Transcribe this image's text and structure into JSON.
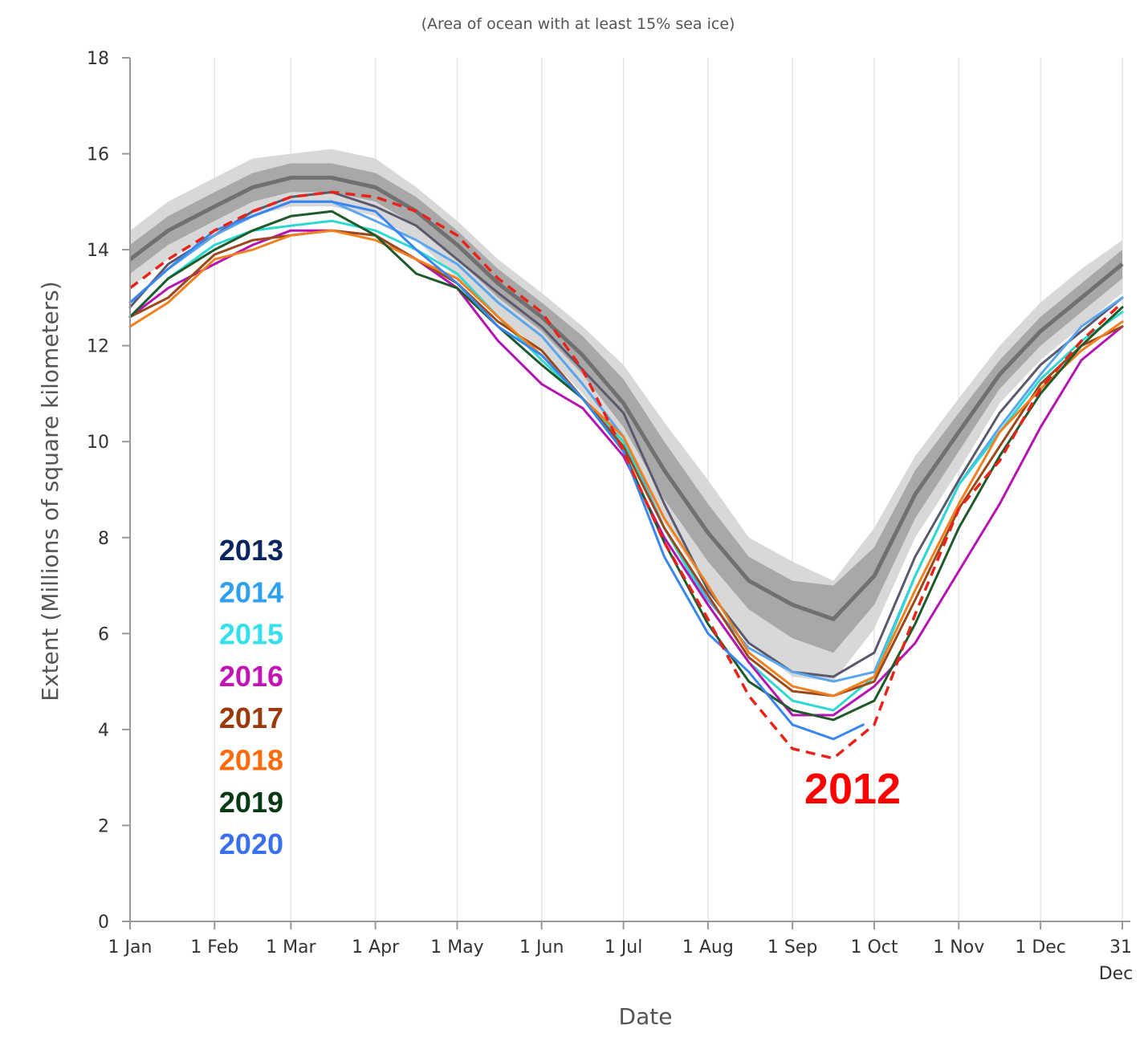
{
  "chart_data": {
    "type": "line",
    "subtitle": "(Area of ocean with at least 15% sea ice)",
    "xlabel": "Date",
    "ylabel": "Extent (Millions of square kilometers)",
    "ylim": [
      0,
      18
    ],
    "xlim": [
      1,
      365
    ],
    "y_ticks": [
      "0",
      "2",
      "4",
      "6",
      "8",
      "10",
      "12",
      "14",
      "16",
      "18"
    ],
    "y_tick_values": [
      0,
      2,
      4,
      6,
      8,
      10,
      12,
      14,
      16,
      18
    ],
    "x_ticks": [
      {
        "label": "1 Jan",
        "day": 1
      },
      {
        "label": "1 Feb",
        "day": 32
      },
      {
        "label": "1 Mar",
        "day": 60
      },
      {
        "label": "1 Apr",
        "day": 91
      },
      {
        "label": "1 May",
        "day": 121
      },
      {
        "label": "1 Jun",
        "day": 152
      },
      {
        "label": "1 Jul",
        "day": 182
      },
      {
        "label": "1 Aug",
        "day": 213
      },
      {
        "label": "1 Sep",
        "day": 244
      },
      {
        "label": "1 Oct",
        "day": 274
      },
      {
        "label": "1 Nov",
        "day": 305
      },
      {
        "label": "1 Dec",
        "day": 335
      },
      {
        "label": "31",
        "day": 365
      }
    ],
    "x_end_sublabel": "Dec",
    "bands": {
      "days": [
        1,
        15,
        32,
        46,
        60,
        75,
        91,
        106,
        121,
        136,
        152,
        167,
        182,
        197,
        213,
        228,
        244,
        259,
        274,
        289,
        305,
        320,
        335,
        350,
        365
      ],
      "median": [
        13.8,
        14.4,
        14.9,
        15.3,
        15.5,
        15.5,
        15.3,
        14.8,
        14.1,
        13.3,
        12.6,
        11.8,
        10.8,
        9.4,
        8.1,
        7.1,
        6.6,
        6.3,
        7.2,
        8.9,
        10.2,
        11.4,
        12.3,
        13.0,
        13.7
      ],
      "iqr_low": [
        13.5,
        14.1,
        14.6,
        15.0,
        15.2,
        15.2,
        15.0,
        14.5,
        13.8,
        13.0,
        12.3,
        11.4,
        10.3,
        8.8,
        7.5,
        6.5,
        5.9,
        5.6,
        6.6,
        8.4,
        9.8,
        11.1,
        12.0,
        12.7,
        13.4
      ],
      "iqr_high": [
        14.1,
        14.7,
        15.2,
        15.6,
        15.8,
        15.8,
        15.6,
        15.1,
        14.4,
        13.6,
        12.9,
        12.2,
        11.3,
        10.0,
        8.7,
        7.6,
        7.1,
        7.0,
        7.8,
        9.4,
        10.6,
        11.7,
        12.6,
        13.3,
        14.0
      ],
      "range_low": [
        13.2,
        13.8,
        14.3,
        14.7,
        14.9,
        14.9,
        14.7,
        14.2,
        13.4,
        12.6,
        11.9,
        11.0,
        9.9,
        8.3,
        6.9,
        5.8,
        5.1,
        5.0,
        6.1,
        8.0,
        9.4,
        10.8,
        11.7,
        12.4,
        13.1
      ],
      "range_high": [
        14.4,
        15.0,
        15.5,
        15.9,
        16.0,
        16.1,
        15.9,
        15.3,
        14.6,
        13.8,
        13.1,
        12.4,
        11.6,
        10.4,
        9.2,
        8.0,
        7.5,
        7.1,
        8.2,
        9.7,
        10.9,
        12.0,
        12.9,
        13.6,
        14.2
      ]
    },
    "series": [
      {
        "name": "2013",
        "color": "#5a5a6e",
        "days": [
          1,
          15,
          32,
          46,
          60,
          75,
          91,
          106,
          121,
          136,
          152,
          167,
          182,
          197,
          213,
          228,
          244,
          259,
          274,
          289,
          305,
          320,
          335,
          350,
          365
        ],
        "values": [
          12.8,
          13.7,
          14.3,
          14.8,
          15.1,
          15.2,
          14.9,
          14.5,
          13.8,
          13.1,
          12.4,
          11.5,
          10.6,
          8.7,
          6.9,
          5.8,
          5.2,
          5.1,
          5.6,
          7.6,
          9.2,
          10.6,
          11.6,
          12.3,
          13.0
        ]
      },
      {
        "name": "2014",
        "color": "#5aa6ee",
        "days": [
          1,
          15,
          32,
          46,
          60,
          75,
          91,
          106,
          121,
          136,
          152,
          167,
          182,
          197,
          213,
          228,
          244,
          259,
          274,
          289,
          305,
          320,
          335,
          350,
          365
        ],
        "values": [
          12.9,
          13.6,
          14.3,
          14.7,
          15.0,
          15.0,
          14.6,
          14.2,
          13.7,
          12.9,
          12.2,
          11.2,
          10.1,
          8.2,
          6.7,
          5.7,
          5.2,
          5.0,
          5.2,
          7.2,
          9.1,
          10.3,
          11.4,
          12.4,
          13.0
        ]
      },
      {
        "name": "2015",
        "color": "#2fd8d0",
        "days": [
          1,
          15,
          32,
          46,
          60,
          75,
          91,
          106,
          121,
          136,
          152,
          167,
          182,
          197,
          213,
          228,
          244,
          259,
          274,
          289,
          305,
          320,
          335,
          350,
          365
        ],
        "values": [
          12.6,
          13.4,
          14.1,
          14.4,
          14.5,
          14.6,
          14.4,
          14.0,
          13.5,
          12.6,
          11.7,
          10.9,
          10.0,
          8.2,
          6.6,
          5.4,
          4.6,
          4.4,
          5.1,
          7.2,
          9.1,
          10.2,
          11.3,
          12.1,
          12.7
        ]
      },
      {
        "name": "2016",
        "color": "#b514b0",
        "days": [
          1,
          15,
          32,
          46,
          60,
          75,
          91,
          106,
          121,
          136,
          152,
          167,
          182,
          197,
          213,
          228,
          244,
          259,
          274,
          289,
          305,
          320,
          335,
          350,
          365
        ],
        "values": [
          12.6,
          13.2,
          13.7,
          14.1,
          14.4,
          14.4,
          14.3,
          13.8,
          13.2,
          12.1,
          11.2,
          10.7,
          9.7,
          8.0,
          6.6,
          5.4,
          4.3,
          4.3,
          4.9,
          5.8,
          7.3,
          8.7,
          10.3,
          11.7,
          12.4
        ]
      },
      {
        "name": "2017",
        "color": "#9a4a1a",
        "days": [
          1,
          15,
          32,
          46,
          60,
          75,
          91,
          106,
          121,
          136,
          152,
          167,
          182,
          197,
          213,
          228,
          244,
          259,
          274,
          289,
          305,
          320,
          335,
          350,
          365
        ],
        "values": [
          12.6,
          13.0,
          13.9,
          14.2,
          14.3,
          14.4,
          14.3,
          13.8,
          13.3,
          12.5,
          11.9,
          10.9,
          9.9,
          8.2,
          6.8,
          5.5,
          4.8,
          4.7,
          5.0,
          6.7,
          8.6,
          9.9,
          11.2,
          12.0,
          12.4
        ]
      },
      {
        "name": "2018",
        "color": "#f08020",
        "days": [
          1,
          15,
          32,
          46,
          60,
          75,
          91,
          106,
          121,
          136,
          152,
          167,
          182,
          197,
          213,
          228,
          244,
          259,
          274,
          289,
          305,
          320,
          335,
          350,
          365
        ],
        "values": [
          12.4,
          12.9,
          13.8,
          14.0,
          14.3,
          14.4,
          14.2,
          13.8,
          13.4,
          12.6,
          11.8,
          10.9,
          10.1,
          8.4,
          7.0,
          5.6,
          4.9,
          4.7,
          5.1,
          6.9,
          8.7,
          10.2,
          11.1,
          11.9,
          12.5
        ]
      },
      {
        "name": "2019",
        "color": "#1e5a2a",
        "days": [
          1,
          15,
          32,
          46,
          60,
          75,
          91,
          106,
          121,
          136,
          152,
          167,
          182,
          197,
          213,
          228,
          244,
          259,
          274,
          289,
          305,
          320,
          335,
          350,
          365
        ],
        "values": [
          12.6,
          13.4,
          14.0,
          14.4,
          14.7,
          14.8,
          14.3,
          13.5,
          13.2,
          12.4,
          11.6,
          10.9,
          9.8,
          7.9,
          6.2,
          5.0,
          4.4,
          4.2,
          4.6,
          6.2,
          8.2,
          9.7,
          11.0,
          12.0,
          12.8
        ]
      },
      {
        "name": "2020",
        "color": "#3a86f0",
        "days": [
          1,
          15,
          32,
          46,
          60,
          75,
          91,
          106,
          121,
          136,
          152,
          167,
          182,
          197,
          213,
          228,
          244,
          259,
          270
        ],
        "values": [
          12.9,
          13.6,
          14.4,
          14.7,
          15.0,
          15.0,
          14.8,
          14.0,
          13.3,
          12.4,
          11.8,
          10.9,
          9.8,
          7.6,
          6.0,
          5.2,
          4.1,
          3.8,
          4.1
        ]
      }
    ],
    "highlight_series": {
      "name": "2012",
      "color": "#e8241a",
      "style": "dashed",
      "days": [
        1,
        15,
        32,
        46,
        60,
        75,
        91,
        106,
        121,
        136,
        152,
        167,
        182,
        197,
        213,
        228,
        244,
        259,
        274,
        289,
        305,
        320,
        335,
        350,
        365
      ],
      "values": [
        13.2,
        13.8,
        14.4,
        14.8,
        15.1,
        15.2,
        15.1,
        14.8,
        14.3,
        13.4,
        12.7,
        11.5,
        9.8,
        7.9,
        6.3,
        4.7,
        3.6,
        3.4,
        4.1,
        6.4,
        8.6,
        9.6,
        11.1,
        12.1,
        12.9
      ]
    }
  },
  "legend": [
    {
      "label": "2013",
      "color": "#0b2560"
    },
    {
      "label": "2014",
      "color": "#2fa0ee"
    },
    {
      "label": "2015",
      "color": "#33e0ee"
    },
    {
      "label": "2016",
      "color": "#c414b4"
    },
    {
      "label": "2017",
      "color": "#9a3a0a"
    },
    {
      "label": "2018",
      "color": "#ff6a0a"
    },
    {
      "label": "2019",
      "color": "#063a12"
    },
    {
      "label": "2020",
      "color": "#3a70f0"
    }
  ],
  "highlight_label": {
    "text": "2012",
    "color": "#ff0000"
  },
  "colors": {
    "grid": "#e6e6e6",
    "axis": "#999999",
    "median": "#707070",
    "iqr": "#a8a8a8",
    "range": "#d8d8d8"
  }
}
